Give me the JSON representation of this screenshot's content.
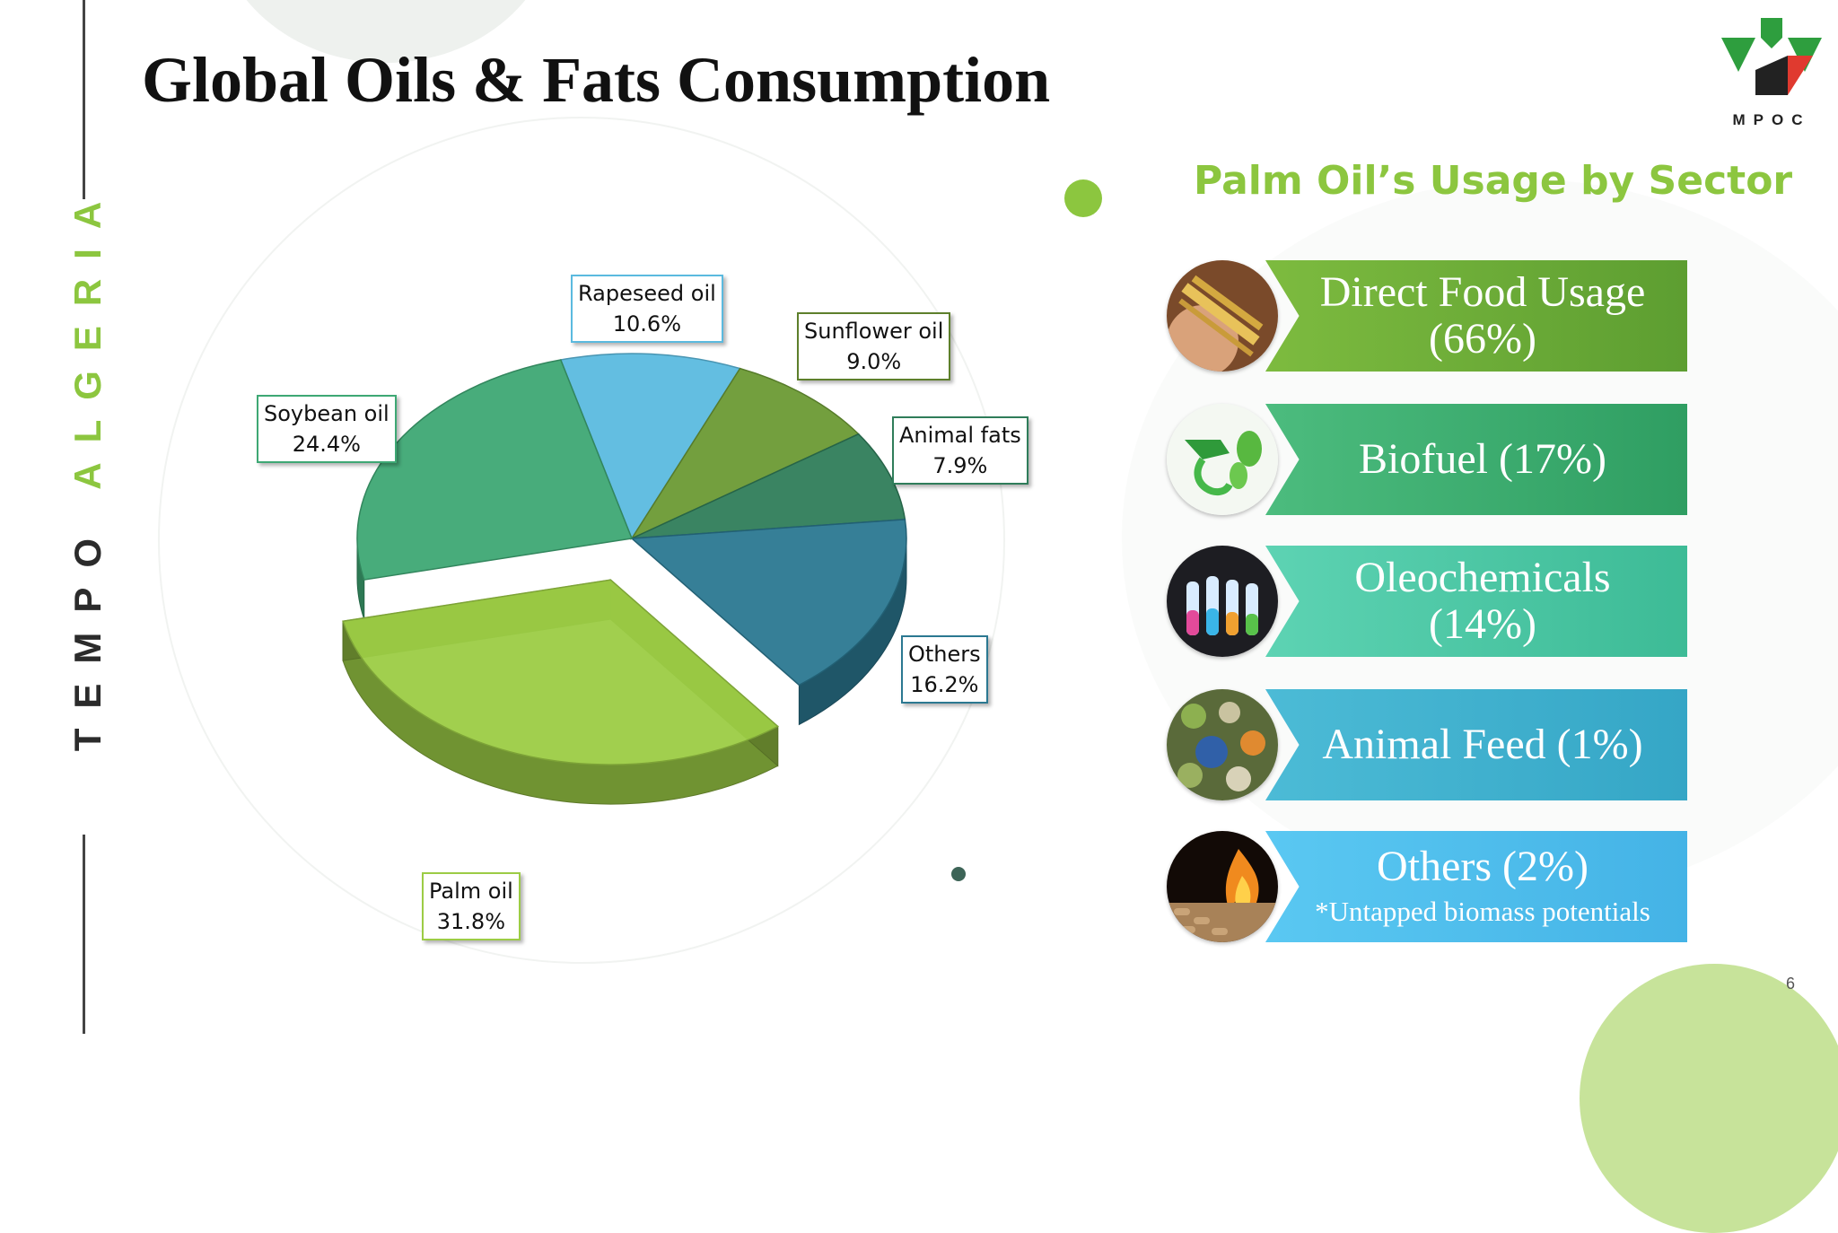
{
  "slide": {
    "title": "Global Oils & Fats Consumption",
    "vertical_brand_1": "TEMPO",
    "vertical_brand_2": "ALGERIA",
    "logo_text": "MPOC",
    "page_number": "6"
  },
  "colors": {
    "brand_green": "#8cc63f",
    "dark_text": "#111111"
  },
  "chart_data": {
    "type": "pie",
    "title": "",
    "series": [
      {
        "name": "Rapeseed oil",
        "value": 10.6,
        "label": "10.6%",
        "color": "#5bbadf"
      },
      {
        "name": "Sunflower oil",
        "value": 9.0,
        "label": "9.0%",
        "color": "#6b9a34"
      },
      {
        "name": "Animal fats",
        "value": 7.9,
        "label": "7.9%",
        "color": "#2f7d5a"
      },
      {
        "name": "Others",
        "value": 16.2,
        "label": "16.2%",
        "color": "#2b7891"
      },
      {
        "name": "Palm oil",
        "value": 31.8,
        "label": "31.8%",
        "color": "#9ccc45"
      },
      {
        "name": "Soybean oil",
        "value": 24.4,
        "label": "24.4%",
        "color": "#3ea874"
      }
    ],
    "legend": "none",
    "data_labels": "callout boxes",
    "exploded": "Palm oil"
  },
  "sector_usage": {
    "title": "Palm Oil’s Usage by Sector",
    "items": [
      {
        "line1": "Direct Food Usage",
        "line2": "(66%)",
        "note": "",
        "color": "#6aab37",
        "icon": "grain-in-hand-icon"
      },
      {
        "line1": "Biofuel (17%)",
        "line2": "",
        "note": "",
        "color": "#3dae6f",
        "icon": "fuel-nozzle-leaf-icon"
      },
      {
        "line1": "Oleochemicals",
        "line2": "(14%)",
        "note": "",
        "color": "#4ccaa6",
        "icon": "test-tubes-icon"
      },
      {
        "line1": "Animal Feed (1%)",
        "line2": "",
        "note": "",
        "color": "#3fb0cf",
        "icon": "feed-mix-icon"
      },
      {
        "line1": "Others (2%)",
        "line2": "",
        "note": "*Untapped biomass potentials",
        "color": "#4fbdef",
        "icon": "biomass-pellets-fire-icon"
      }
    ]
  }
}
